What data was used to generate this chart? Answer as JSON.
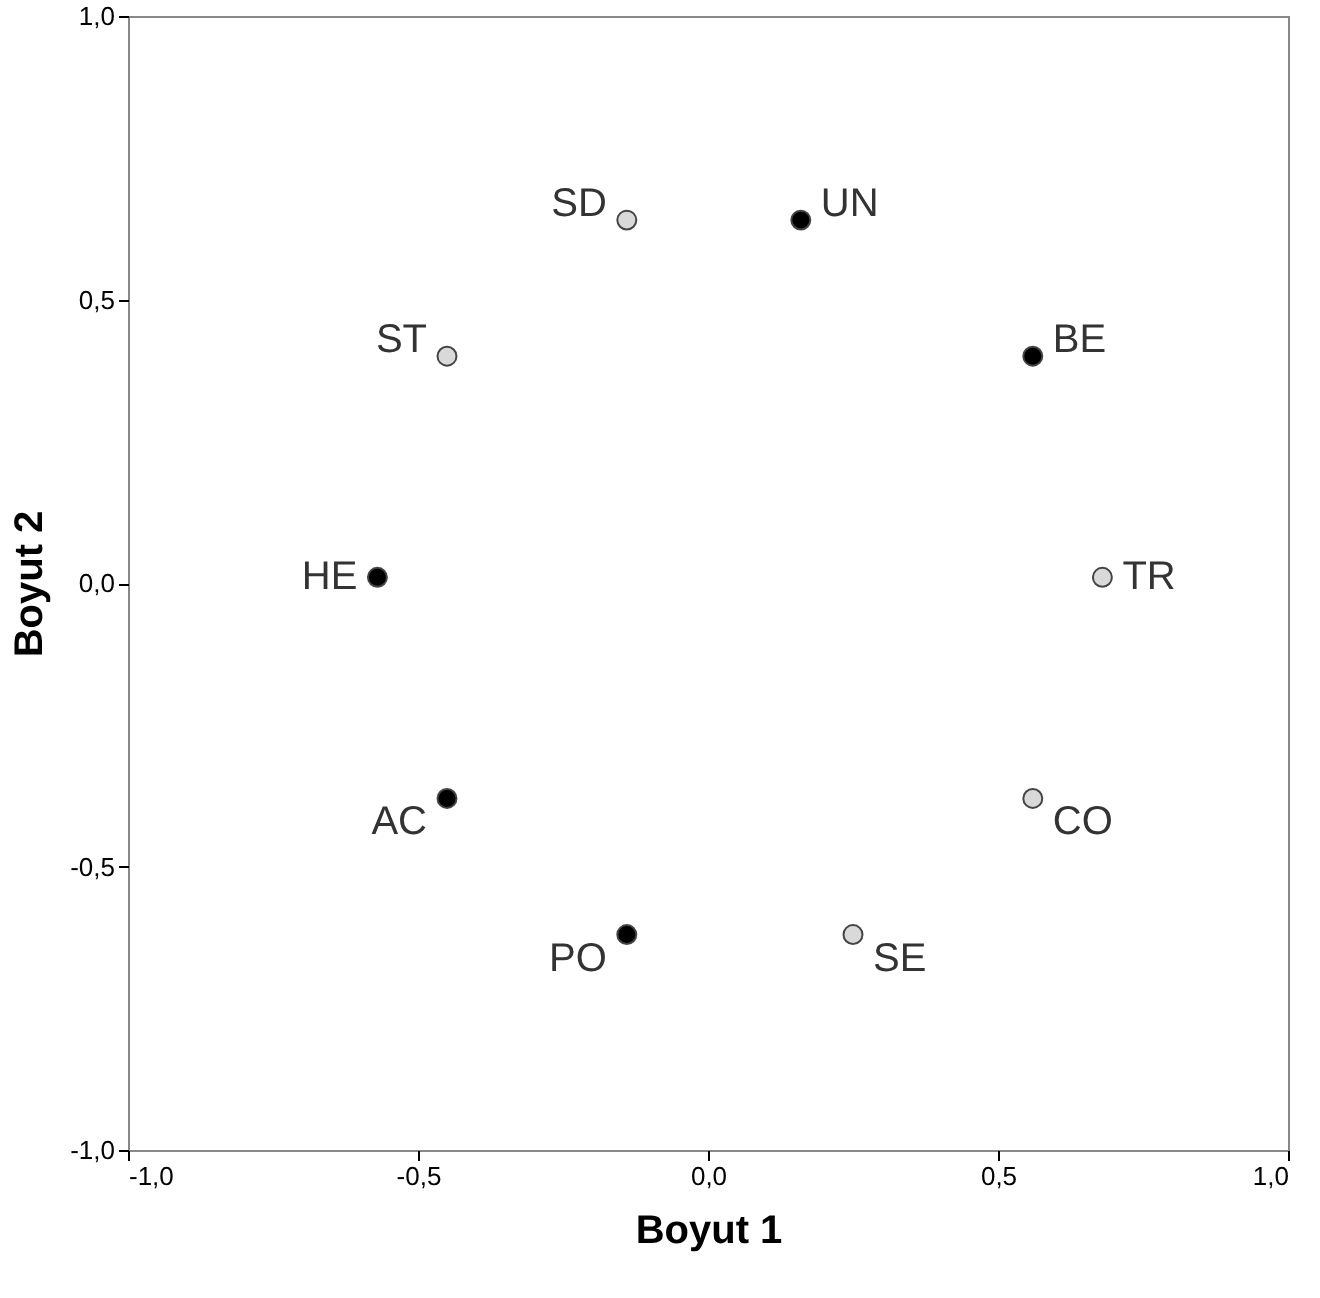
{
  "chart_data": {
    "type": "scatter",
    "xlabel": "Boyut 1",
    "ylabel": "Boyut 2",
    "x": [
      -0.14,
      0.16,
      -0.45,
      0.56,
      -0.57,
      0.68,
      -0.45,
      0.56,
      -0.14,
      0.25
    ],
    "values": [
      0.64,
      0.64,
      0.4,
      0.4,
      0.01,
      0.01,
      -0.38,
      -0.38,
      -0.62,
      -0.62
    ],
    "colors": [
      "#d9d9d9",
      "#000000",
      "#d9d9d9",
      "#000000",
      "#000000",
      "#d9d9d9",
      "#000000",
      "#d9d9d9",
      "#000000",
      "#d9d9d9"
    ],
    "annotations": [
      {
        "text": "SD",
        "x": -0.14,
        "y": 0.64
      },
      {
        "text": "UN",
        "x": 0.16,
        "y": 0.64
      },
      {
        "text": "ST",
        "x": -0.45,
        "y": 0.4
      },
      {
        "text": "BE",
        "x": 0.56,
        "y": 0.4
      },
      {
        "text": "HE",
        "x": -0.57,
        "y": 0.01
      },
      {
        "text": "TR",
        "x": 0.68,
        "y": 0.01
      },
      {
        "text": "AC",
        "x": -0.45,
        "y": -0.38
      },
      {
        "text": "CO",
        "x": 0.56,
        "y": -0.38
      },
      {
        "text": "PO",
        "x": -0.14,
        "y": -0.62
      },
      {
        "text": "SE",
        "x": 0.25,
        "y": -0.62
      }
    ],
    "xlim": [
      -1,
      1
    ],
    "ylim": [
      -1,
      1
    ],
    "xticks": [
      {
        "value": -1,
        "label": "-1,0"
      },
      {
        "value": -0.5,
        "label": "-0,5"
      },
      {
        "value": 0,
        "label": "0,0"
      },
      {
        "value": 0.5,
        "label": "0,5"
      },
      {
        "value": 1,
        "label": "1,0"
      }
    ],
    "yticks": [
      {
        "value": -1,
        "label": "-1,0"
      },
      {
        "value": -0.5,
        "label": "-0,5"
      },
      {
        "value": 0,
        "label": "0,0"
      },
      {
        "value": 0.5,
        "label": "0,5"
      },
      {
        "value": 1,
        "label": "1,0"
      }
    ],
    "grid": false,
    "marker": "circle"
  }
}
